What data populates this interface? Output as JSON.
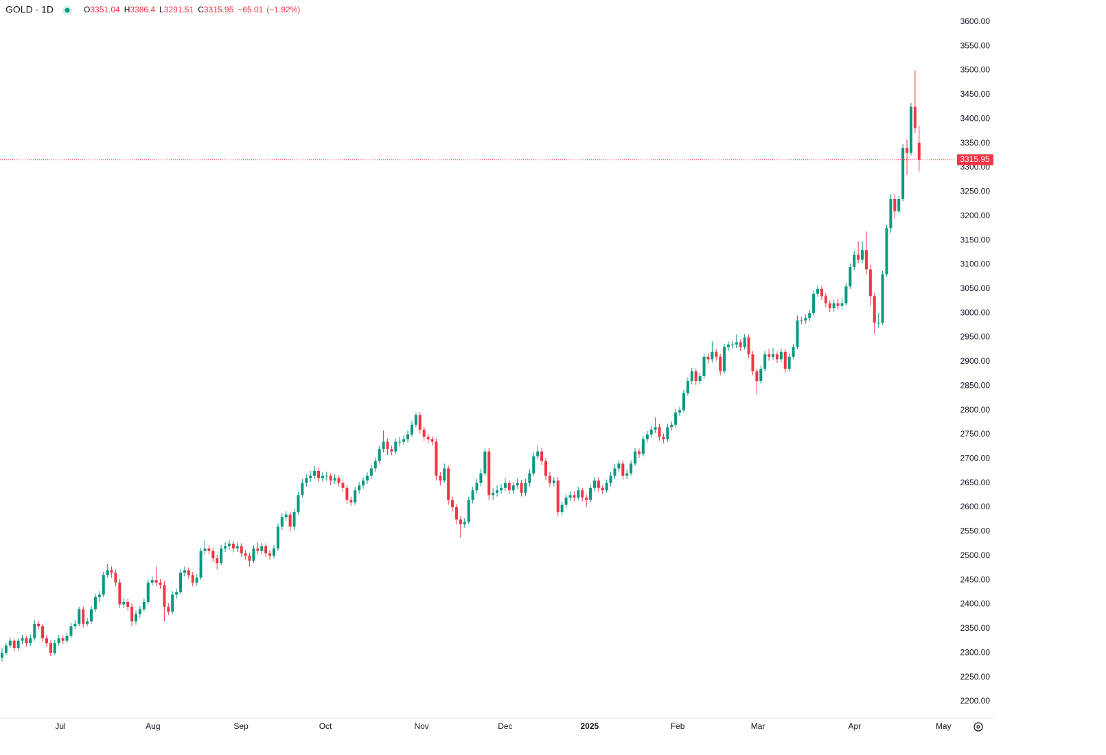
{
  "chart_data": {
    "type": "candlestick",
    "title": "GOLD · 1D",
    "header_labels": [
      "O",
      "H",
      "L",
      "C"
    ],
    "change": "−65.01",
    "change_pct": "(−1.92%)",
    "up_color": "#089981",
    "down_color": "#f23645",
    "grid": false,
    "ylim": [
      2166,
      3645
    ],
    "yticks": [
      {
        "value": 2200,
        "label": "2200.00"
      },
      {
        "value": 2250,
        "label": "2250.00"
      },
      {
        "value": 2300,
        "label": "2300.00"
      },
      {
        "value": 2350,
        "label": "2350.00"
      },
      {
        "value": 2400,
        "label": "2400.00"
      },
      {
        "value": 2450,
        "label": "2450.00"
      },
      {
        "value": 2500,
        "label": "2500.00"
      },
      {
        "value": 2550,
        "label": "2550.00"
      },
      {
        "value": 2600,
        "label": "2600.00"
      },
      {
        "value": 2650,
        "label": "2650.00"
      },
      {
        "value": 2700,
        "label": "2700.00"
      },
      {
        "value": 2750,
        "label": "2750.00"
      },
      {
        "value": 2800,
        "label": "2800.00"
      },
      {
        "value": 2850,
        "label": "2850.00"
      },
      {
        "value": 2900,
        "label": "2900.00"
      },
      {
        "value": 2950,
        "label": "2950.00"
      },
      {
        "value": 3000,
        "label": "3000.00"
      },
      {
        "value": 3050,
        "label": "3050.00"
      },
      {
        "value": 3100,
        "label": "3100.00"
      },
      {
        "value": 3150,
        "label": "3150.00"
      },
      {
        "value": 3200,
        "label": "3200.00"
      },
      {
        "value": 3250,
        "label": "3250.00"
      },
      {
        "value": 3300,
        "label": "3300.00"
      },
      {
        "value": 3350,
        "label": "3350.00"
      },
      {
        "value": 3400,
        "label": "3400.00"
      },
      {
        "value": 3450,
        "label": "3450.00"
      },
      {
        "value": 3500,
        "label": "3500.00"
      },
      {
        "value": 3550,
        "label": "3550.00"
      },
      {
        "value": 3600,
        "label": "3600.00"
      }
    ],
    "xlim": [
      -0.5,
      235
    ],
    "xticks": [
      {
        "value": 14.4,
        "label": "Jul"
      },
      {
        "value": 37.2,
        "label": "Aug"
      },
      {
        "value": 58.9,
        "label": "Sep"
      },
      {
        "value": 79.7,
        "label": "Oct"
      },
      {
        "value": 103.4,
        "label": "Nov"
      },
      {
        "value": 124.0,
        "label": "Dec"
      },
      {
        "value": 144.8,
        "label": "2025"
      },
      {
        "value": 166.5,
        "label": "Feb"
      },
      {
        "value": 186.3,
        "label": "Mar"
      },
      {
        "value": 210.1,
        "label": "Apr"
      },
      {
        "value": 232.0,
        "label": "May"
      }
    ],
    "ohlc": [
      [
        2290,
        2310,
        2282,
        2300
      ],
      [
        2300,
        2320,
        2295,
        2315
      ],
      [
        2315,
        2332,
        2310,
        2325
      ],
      [
        2325,
        2330,
        2303,
        2310
      ],
      [
        2310,
        2330,
        2305,
        2325
      ],
      [
        2325,
        2337,
        2318,
        2330
      ],
      [
        2330,
        2335,
        2313,
        2320
      ],
      [
        2320,
        2338,
        2315,
        2330
      ],
      [
        2330,
        2368,
        2325,
        2360
      ],
      [
        2360,
        2366,
        2348,
        2355
      ],
      [
        2355,
        2360,
        2322,
        2330
      ],
      [
        2330,
        2337,
        2313,
        2320
      ],
      [
        2320,
        2326,
        2293,
        2300
      ],
      [
        2300,
        2327,
        2296,
        2320
      ],
      [
        2320,
        2337,
        2315,
        2330
      ],
      [
        2330,
        2336,
        2318,
        2325
      ],
      [
        2325,
        2342,
        2320,
        2335
      ],
      [
        2335,
        2362,
        2330,
        2355
      ],
      [
        2355,
        2368,
        2350,
        2360
      ],
      [
        2360,
        2395,
        2355,
        2390
      ],
      [
        2390,
        2396,
        2352,
        2360
      ],
      [
        2360,
        2372,
        2355,
        2365
      ],
      [
        2365,
        2397,
        2360,
        2390
      ],
      [
        2390,
        2422,
        2385,
        2415
      ],
      [
        2415,
        2427,
        2405,
        2420
      ],
      [
        2420,
        2467,
        2415,
        2460
      ],
      [
        2460,
        2483,
        2455,
        2470
      ],
      [
        2470,
        2478,
        2455,
        2465
      ],
      [
        2465,
        2472,
        2437,
        2445
      ],
      [
        2445,
        2452,
        2393,
        2400
      ],
      [
        2400,
        2412,
        2392,
        2405
      ],
      [
        2405,
        2412,
        2387,
        2395
      ],
      [
        2395,
        2402,
        2355,
        2365
      ],
      [
        2365,
        2387,
        2358,
        2380
      ],
      [
        2380,
        2397,
        2372,
        2390
      ],
      [
        2390,
        2412,
        2385,
        2405
      ],
      [
        2405,
        2452,
        2400,
        2445
      ],
      [
        2445,
        2458,
        2438,
        2450
      ],
      [
        2450,
        2478,
        2438,
        2445
      ],
      [
        2445,
        2452,
        2432,
        2440
      ],
      [
        2440,
        2448,
        2365,
        2395
      ],
      [
        2395,
        2402,
        2378,
        2385
      ],
      [
        2385,
        2427,
        2380,
        2420
      ],
      [
        2420,
        2432,
        2412,
        2425
      ],
      [
        2425,
        2472,
        2420,
        2465
      ],
      [
        2465,
        2478,
        2458,
        2470
      ],
      [
        2470,
        2476,
        2452,
        2460
      ],
      [
        2460,
        2467,
        2437,
        2445
      ],
      [
        2445,
        2462,
        2438,
        2455
      ],
      [
        2455,
        2517,
        2450,
        2510
      ],
      [
        2510,
        2532,
        2503,
        2515
      ],
      [
        2515,
        2522,
        2503,
        2510
      ],
      [
        2510,
        2517,
        2487,
        2495
      ],
      [
        2495,
        2502,
        2472,
        2485
      ],
      [
        2485,
        2522,
        2480,
        2515
      ],
      [
        2515,
        2528,
        2508,
        2520
      ],
      [
        2520,
        2532,
        2512,
        2525
      ],
      [
        2525,
        2531,
        2507,
        2515
      ],
      [
        2515,
        2528,
        2508,
        2520
      ],
      [
        2520,
        2526,
        2497,
        2505
      ],
      [
        2505,
        2512,
        2492,
        2500
      ],
      [
        2500,
        2506,
        2478,
        2490
      ],
      [
        2490,
        2522,
        2485,
        2515
      ],
      [
        2515,
        2528,
        2503,
        2510
      ],
      [
        2510,
        2527,
        2503,
        2520
      ],
      [
        2520,
        2526,
        2497,
        2505
      ],
      [
        2505,
        2512,
        2492,
        2500
      ],
      [
        2500,
        2522,
        2495,
        2515
      ],
      [
        2515,
        2567,
        2510,
        2560
      ],
      [
        2560,
        2588,
        2553,
        2580
      ],
      [
        2580,
        2592,
        2572,
        2585
      ],
      [
        2585,
        2590,
        2550,
        2560
      ],
      [
        2560,
        2597,
        2552,
        2590
      ],
      [
        2590,
        2632,
        2585,
        2625
      ],
      [
        2625,
        2658,
        2620,
        2650
      ],
      [
        2650,
        2668,
        2642,
        2660
      ],
      [
        2660,
        2675,
        2652,
        2665
      ],
      [
        2665,
        2685,
        2658,
        2675
      ],
      [
        2675,
        2682,
        2652,
        2660
      ],
      [
        2660,
        2672,
        2653,
        2665
      ],
      [
        2665,
        2673,
        2655,
        2665
      ],
      [
        2665,
        2670,
        2645,
        2655
      ],
      [
        2655,
        2668,
        2648,
        2660
      ],
      [
        2660,
        2666,
        2642,
        2650
      ],
      [
        2650,
        2656,
        2632,
        2640
      ],
      [
        2640,
        2646,
        2607,
        2615
      ],
      [
        2615,
        2622,
        2603,
        2610
      ],
      [
        2610,
        2642,
        2605,
        2635
      ],
      [
        2635,
        2652,
        2628,
        2645
      ],
      [
        2645,
        2662,
        2638,
        2655
      ],
      [
        2655,
        2672,
        2648,
        2665
      ],
      [
        2665,
        2688,
        2658,
        2680
      ],
      [
        2680,
        2702,
        2673,
        2695
      ],
      [
        2695,
        2727,
        2690,
        2720
      ],
      [
        2720,
        2758,
        2713,
        2735
      ],
      [
        2735,
        2742,
        2708,
        2720
      ],
      [
        2720,
        2727,
        2707,
        2715
      ],
      [
        2715,
        2742,
        2710,
        2735
      ],
      [
        2735,
        2745,
        2725,
        2735
      ],
      [
        2735,
        2748,
        2728,
        2740
      ],
      [
        2740,
        2758,
        2733,
        2750
      ],
      [
        2750,
        2778,
        2745,
        2770
      ],
      [
        2770,
        2795,
        2765,
        2790
      ],
      [
        2790,
        2796,
        2752,
        2760
      ],
      [
        2760,
        2766,
        2737,
        2745
      ],
      [
        2745,
        2752,
        2732,
        2740
      ],
      [
        2740,
        2746,
        2727,
        2735
      ],
      [
        2735,
        2742,
        2655,
        2665
      ],
      [
        2665,
        2672,
        2645,
        2655
      ],
      [
        2655,
        2690,
        2650,
        2680
      ],
      [
        2680,
        2686,
        2605,
        2615
      ],
      [
        2615,
        2622,
        2592,
        2600
      ],
      [
        2600,
        2606,
        2565,
        2575
      ],
      [
        2575,
        2582,
        2537,
        2565
      ],
      [
        2565,
        2578,
        2558,
        2570
      ],
      [
        2570,
        2622,
        2565,
        2615
      ],
      [
        2615,
        2642,
        2608,
        2635
      ],
      [
        2635,
        2658,
        2628,
        2650
      ],
      [
        2650,
        2680,
        2643,
        2670
      ],
      [
        2670,
        2722,
        2665,
        2715
      ],
      [
        2715,
        2722,
        2615,
        2625
      ],
      [
        2625,
        2640,
        2615,
        2630
      ],
      [
        2630,
        2645,
        2622,
        2635
      ],
      [
        2635,
        2648,
        2628,
        2640
      ],
      [
        2640,
        2660,
        2633,
        2650
      ],
      [
        2650,
        2656,
        2627,
        2635
      ],
      [
        2635,
        2652,
        2628,
        2645
      ],
      [
        2645,
        2660,
        2638,
        2650
      ],
      [
        2650,
        2656,
        2622,
        2630
      ],
      [
        2630,
        2658,
        2623,
        2650
      ],
      [
        2650,
        2678,
        2643,
        2670
      ],
      [
        2670,
        2713,
        2665,
        2705
      ],
      [
        2705,
        2728,
        2698,
        2715
      ],
      [
        2715,
        2722,
        2687,
        2695
      ],
      [
        2695,
        2702,
        2657,
        2665
      ],
      [
        2665,
        2672,
        2642,
        2650
      ],
      [
        2650,
        2662,
        2643,
        2655
      ],
      [
        2655,
        2662,
        2582,
        2590
      ],
      [
        2590,
        2612,
        2583,
        2605
      ],
      [
        2605,
        2627,
        2598,
        2620
      ],
      [
        2620,
        2632,
        2613,
        2625
      ],
      [
        2625,
        2632,
        2612,
        2620
      ],
      [
        2620,
        2642,
        2615,
        2635
      ],
      [
        2635,
        2640,
        2612,
        2620
      ],
      [
        2620,
        2626,
        2600,
        2615
      ],
      [
        2615,
        2647,
        2610,
        2640
      ],
      [
        2640,
        2662,
        2633,
        2655
      ],
      [
        2655,
        2662,
        2632,
        2640
      ],
      [
        2640,
        2646,
        2627,
        2635
      ],
      [
        2635,
        2657,
        2630,
        2650
      ],
      [
        2650,
        2672,
        2643,
        2665
      ],
      [
        2665,
        2688,
        2658,
        2680
      ],
      [
        2680,
        2697,
        2673,
        2690
      ],
      [
        2690,
        2697,
        2657,
        2665
      ],
      [
        2665,
        2678,
        2658,
        2670
      ],
      [
        2670,
        2697,
        2665,
        2690
      ],
      [
        2690,
        2722,
        2685,
        2715
      ],
      [
        2715,
        2721,
        2702,
        2710
      ],
      [
        2710,
        2747,
        2705,
        2740
      ],
      [
        2740,
        2757,
        2733,
        2750
      ],
      [
        2750,
        2768,
        2743,
        2760
      ],
      [
        2760,
        2785,
        2753,
        2765
      ],
      [
        2765,
        2772,
        2737,
        2745
      ],
      [
        2745,
        2752,
        2732,
        2740
      ],
      [
        2740,
        2772,
        2735,
        2765
      ],
      [
        2765,
        2777,
        2758,
        2770
      ],
      [
        2770,
        2802,
        2765,
        2795
      ],
      [
        2795,
        2807,
        2788,
        2800
      ],
      [
        2800,
        2842,
        2795,
        2835
      ],
      [
        2835,
        2867,
        2830,
        2860
      ],
      [
        2860,
        2887,
        2853,
        2880
      ],
      [
        2880,
        2886,
        2852,
        2860
      ],
      [
        2860,
        2877,
        2853,
        2870
      ],
      [
        2870,
        2917,
        2865,
        2910
      ],
      [
        2910,
        2917,
        2897,
        2905
      ],
      [
        2905,
        2942,
        2898,
        2920
      ],
      [
        2920,
        2926,
        2902,
        2910
      ],
      [
        2910,
        2916,
        2872,
        2880
      ],
      [
        2880,
        2937,
        2875,
        2930
      ],
      [
        2930,
        2942,
        2923,
        2935
      ],
      [
        2935,
        2942,
        2927,
        2935
      ],
      [
        2935,
        2956,
        2928,
        2940
      ],
      [
        2940,
        2946,
        2922,
        2930
      ],
      [
        2930,
        2957,
        2925,
        2950
      ],
      [
        2950,
        2956,
        2907,
        2915
      ],
      [
        2915,
        2922,
        2872,
        2880
      ],
      [
        2880,
        2886,
        2833,
        2860
      ],
      [
        2860,
        2892,
        2855,
        2885
      ],
      [
        2885,
        2922,
        2880,
        2915
      ],
      [
        2915,
        2926,
        2902,
        2910
      ],
      [
        2910,
        2928,
        2903,
        2915
      ],
      [
        2915,
        2921,
        2897,
        2905
      ],
      [
        2905,
        2927,
        2898,
        2920
      ],
      [
        2920,
        2926,
        2877,
        2885
      ],
      [
        2885,
        2917,
        2880,
        2910
      ],
      [
        2910,
        2937,
        2905,
        2930
      ],
      [
        2930,
        2995,
        2925,
        2985
      ],
      [
        2985,
        2992,
        2977,
        2985
      ],
      [
        2985,
        2997,
        2978,
        2990
      ],
      [
        2990,
        3007,
        2983,
        3000
      ],
      [
        3000,
        3047,
        2995,
        3040
      ],
      [
        3040,
        3057,
        3033,
        3050
      ],
      [
        3050,
        3056,
        3027,
        3035
      ],
      [
        3035,
        3041,
        3012,
        3020
      ],
      [
        3020,
        3026,
        3002,
        3010
      ],
      [
        3010,
        3027,
        3003,
        3020
      ],
      [
        3020,
        3030,
        3007,
        3015
      ],
      [
        3015,
        3032,
        3008,
        3020
      ],
      [
        3020,
        3062,
        3015,
        3055
      ],
      [
        3055,
        3102,
        3050,
        3095
      ],
      [
        3095,
        3128,
        3088,
        3120
      ],
      [
        3120,
        3148,
        3103,
        3110
      ],
      [
        3110,
        3148,
        3103,
        3130
      ],
      [
        3130,
        3168,
        3080,
        3090
      ],
      [
        3090,
        3100,
        3015,
        3035
      ],
      [
        3035,
        3042,
        2957,
        2980
      ],
      [
        2980,
        3000,
        2970,
        2980
      ],
      [
        2980,
        3087,
        2975,
        3080
      ],
      [
        3080,
        3182,
        3075,
        3175
      ],
      [
        3175,
        3245,
        3165,
        3235
      ],
      [
        3235,
        3245,
        3195,
        3210
      ],
      [
        3210,
        3242,
        3205,
        3235
      ],
      [
        3235,
        3348,
        3230,
        3340
      ],
      [
        3340,
        3358,
        3285,
        3330
      ],
      [
        3330,
        3433,
        3325,
        3425
      ],
      [
        3425,
        3500,
        3370,
        3380.96
      ],
      [
        3351.04,
        3386.4,
        3291.51,
        3315.95
      ]
    ]
  }
}
